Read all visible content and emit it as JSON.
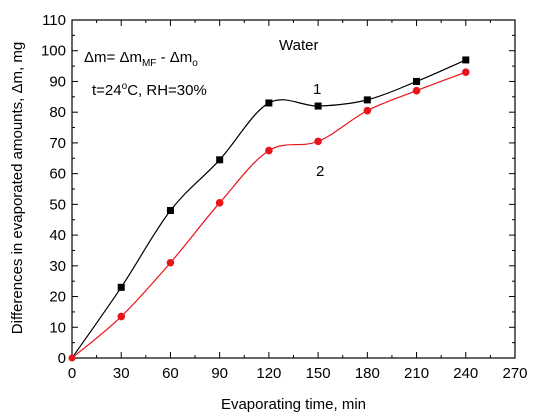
{
  "chart_data": {
    "type": "scatter",
    "title": "",
    "xlabel": "Evaporating time, min",
    "ylabel": "Differences in evaporated amounts, Δm, mg",
    "xlim": [
      0,
      270
    ],
    "ylim": [
      0,
      110
    ],
    "x_ticks": [
      "0",
      "30",
      "60",
      "90",
      "120",
      "150",
      "180",
      "210",
      "240",
      "270"
    ],
    "y_ticks": [
      "0",
      "10",
      "20",
      "30",
      "40",
      "50",
      "60",
      "70",
      "80",
      "90",
      "100",
      "110"
    ],
    "grid": false,
    "legend": "none",
    "series": [
      {
        "label": "1",
        "marker": "square",
        "color": "#000000",
        "x": [
          0,
          30,
          60,
          90,
          120,
          150,
          180,
          210,
          240
        ],
        "y": [
          0,
          23,
          48,
          64.5,
          83,
          82,
          84,
          90,
          97
        ]
      },
      {
        "label": "2",
        "marker": "circle",
        "color": "#e8141c",
        "x": [
          0,
          30,
          60,
          90,
          120,
          150,
          180,
          210,
          240
        ],
        "y": [
          0,
          13.5,
          31,
          50.5,
          67.5,
          70.5,
          80.5,
          87,
          93
        ]
      }
    ],
    "annotations": {
      "formula_lhs": "Δm= Δm",
      "formula_sub1": "MF",
      "formula_mid": " - Δm",
      "formula_sub2": "o",
      "conditions_pre": "t=24",
      "conditions_sup": "o",
      "conditions_post": "C, RH=30%",
      "substance": "Water"
    }
  }
}
